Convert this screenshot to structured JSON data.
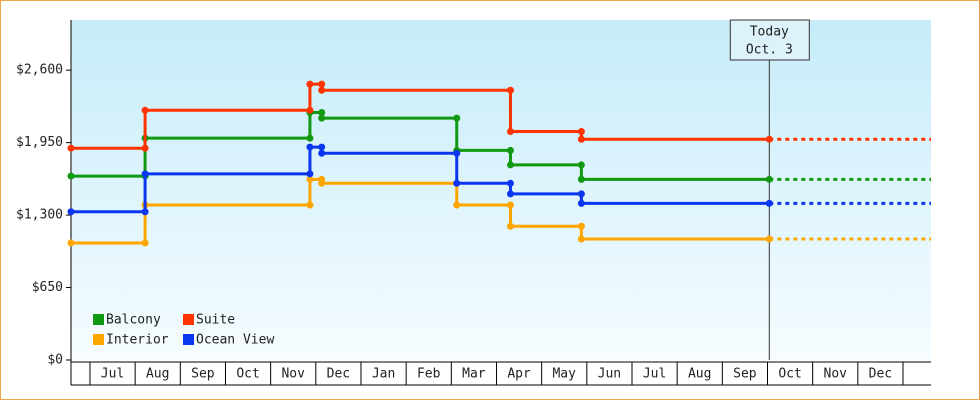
{
  "chart_data": {
    "type": "step-line",
    "xlim": [
      6.58,
      25.62
    ],
    "xticks": [
      {
        "value": 7.5,
        "label": "Jul"
      },
      {
        "value": 8.5,
        "label": "Aug"
      },
      {
        "value": 9.5,
        "label": "Sep"
      },
      {
        "value": 10.5,
        "label": "Oct"
      },
      {
        "value": 11.5,
        "label": "Nov"
      },
      {
        "value": 12.5,
        "label": "Dec"
      },
      {
        "value": 13.5,
        "label": "Jan"
      },
      {
        "value": 14.5,
        "label": "Feb"
      },
      {
        "value": 15.5,
        "label": "Mar"
      },
      {
        "value": 16.5,
        "label": "Apr"
      },
      {
        "value": 17.5,
        "label": "May"
      },
      {
        "value": 18.5,
        "label": "Jun"
      },
      {
        "value": 19.5,
        "label": "Jul"
      },
      {
        "value": 20.5,
        "label": "Aug"
      },
      {
        "value": 21.5,
        "label": "Sep"
      },
      {
        "value": 22.5,
        "label": "Oct"
      },
      {
        "value": 23.5,
        "label": "Nov"
      },
      {
        "value": 24.5,
        "label": "Dec"
      }
    ],
    "ylim": [
      0,
      3050
    ],
    "yticks": [
      {
        "value": 0,
        "label": "$0"
      },
      {
        "value": 650,
        "label": "$650"
      },
      {
        "value": 1300,
        "label": "$1,300"
      },
      {
        "value": 1950,
        "label": "$1,950"
      },
      {
        "value": 2600,
        "label": "$2,600"
      }
    ],
    "today": {
      "text": [
        "Today",
        "Oct. 3"
      ],
      "x": 22.04
    },
    "series": [
      {
        "name": "Balcony",
        "color": "#119911",
        "x": [
          6.58,
          8.22,
          8.22,
          11.87,
          11.87,
          12.13,
          12.13,
          15.12,
          15.12,
          16.31,
          16.31,
          17.88,
          17.88,
          22.04
        ],
        "values": [
          1650,
          1650,
          1990,
          1990,
          2220,
          2220,
          2170,
          2170,
          1880,
          1880,
          1750,
          1750,
          1620,
          1620
        ]
      },
      {
        "name": "Suite",
        "color": "#ff3300",
        "x": [
          6.58,
          8.22,
          8.22,
          11.87,
          11.87,
          12.13,
          12.13,
          16.31,
          16.31,
          17.88,
          17.88,
          22.04
        ],
        "values": [
          1900,
          1900,
          2240,
          2240,
          2475,
          2475,
          2420,
          2420,
          2050,
          2050,
          1980,
          1980
        ]
      },
      {
        "name": "Interior",
        "color": "#ffa500",
        "x": [
          6.58,
          8.22,
          8.22,
          11.87,
          11.87,
          12.13,
          12.13,
          15.12,
          15.12,
          16.31,
          16.31,
          17.88,
          17.88,
          22.04
        ],
        "values": [
          1050,
          1050,
          1390,
          1390,
          1620,
          1620,
          1585,
          1585,
          1390,
          1390,
          1200,
          1200,
          1085,
          1085
        ]
      },
      {
        "name": "Ocean View",
        "color": "#0a36f0",
        "x": [
          6.58,
          8.22,
          8.22,
          11.87,
          11.87,
          12.13,
          12.13,
          15.12,
          15.12,
          16.31,
          16.31,
          17.88,
          17.88,
          22.04
        ],
        "values": [
          1330,
          1330,
          1670,
          1670,
          1910,
          1910,
          1855,
          1855,
          1585,
          1585,
          1490,
          1490,
          1405,
          1405
        ]
      }
    ]
  }
}
